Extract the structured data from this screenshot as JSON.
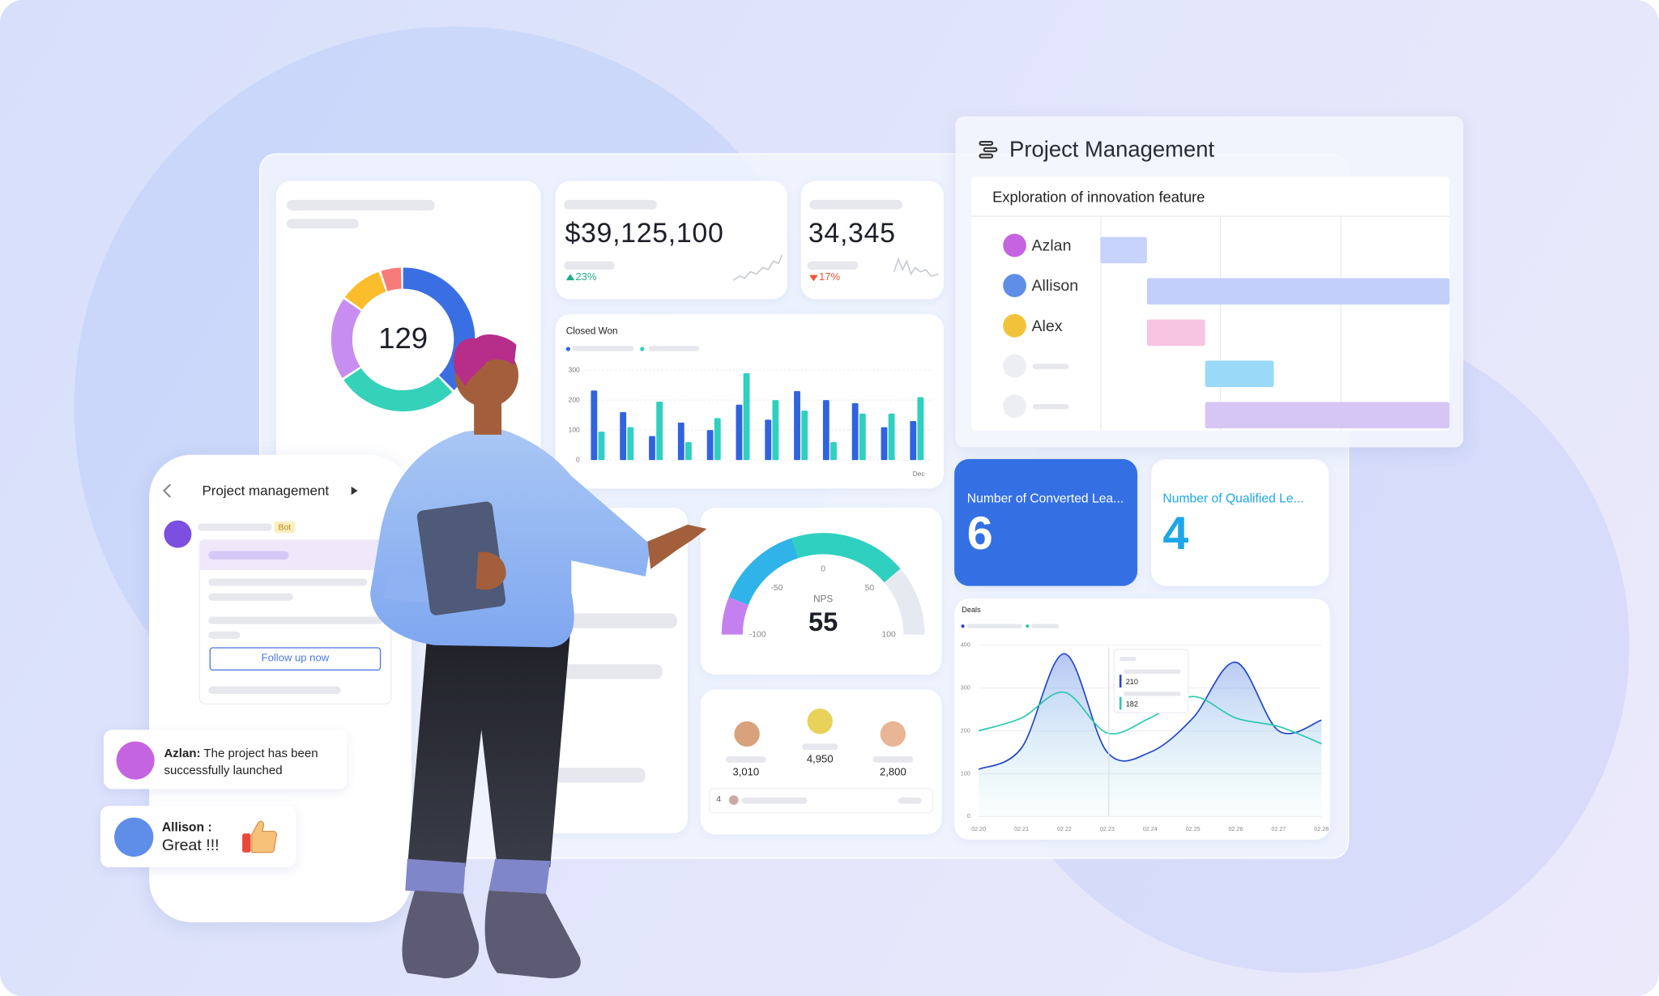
{
  "dashboard": {
    "donut": {
      "center_label": "129"
    },
    "revenue": {
      "value": "$39,125,100",
      "change": "23%"
    },
    "count": {
      "value": "34,345",
      "change": "17%"
    },
    "closed_won": {
      "title": "Closed Won",
      "ylim": [
        0,
        300
      ],
      "yticks": [
        0,
        100,
        200,
        300
      ],
      "last_category": "Dec",
      "series": [
        {
          "color": "#2f63e0",
          "values": [
            232,
            160,
            80,
            125,
            100,
            185,
            135,
            230,
            200,
            190,
            110,
            130
          ]
        },
        {
          "color": "#2fd0bf",
          "values": [
            95,
            110,
            195,
            60,
            140,
            290,
            200,
            165,
            60,
            155,
            155,
            210
          ]
        }
      ]
    },
    "nps": {
      "label": "NPS",
      "value": 55,
      "ticks": [
        -100,
        -50,
        0,
        50,
        100
      ]
    },
    "leaders": {
      "scores": [
        "3,010",
        "4,950",
        "2,800"
      ],
      "rank": "4"
    },
    "converted": {
      "label": "Number of Converted Lea...",
      "value": "6"
    },
    "qualified": {
      "label": "Number of Qualified Le...",
      "value": "4"
    },
    "deals": {
      "title": "Deals",
      "ylim": [
        0,
        400
      ],
      "yticks": [
        0,
        100,
        200,
        300,
        400
      ],
      "x": [
        "02.20",
        "02.21",
        "02.22",
        "02.23",
        "02.24",
        "02.25",
        "02.26",
        "02.27",
        "02.28"
      ],
      "series": [
        {
          "color": "#2448c8",
          "values": [
            110,
            160,
            380,
            150,
            150,
            230,
            360,
            200,
            225
          ]
        },
        {
          "color": "#2cc7b0",
          "values": [
            200,
            230,
            290,
            195,
            230,
            280,
            230,
            210,
            170
          ]
        }
      ],
      "tooltip": [
        210,
        182
      ]
    }
  },
  "project_panel": {
    "title": "Project Management",
    "task": "Exploration of innovation feature",
    "members": [
      "Azlan",
      "Allison",
      "Alex"
    ]
  },
  "mobile": {
    "title": "Project management",
    "badge": "Bot",
    "button": "Follow up now"
  },
  "messages": [
    {
      "sender": "Azlan:",
      "text": "The project has been successfully launched"
    },
    {
      "sender": "Allison :",
      "text": "Great !!!"
    }
  ]
}
